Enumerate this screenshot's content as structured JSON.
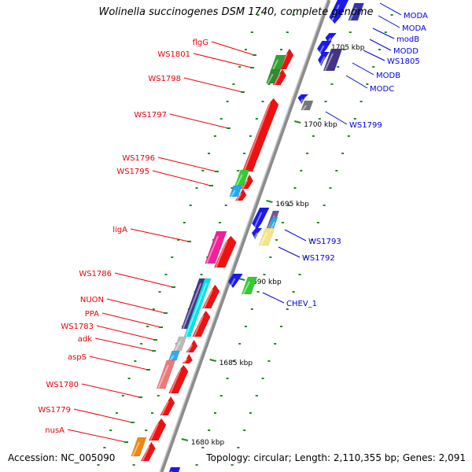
{
  "title": "Wolinella succinogenes DSM 1740, complete genome",
  "accession": "Accession: NC_005090",
  "summary": "Topology: circular; Length: 2,110,355 bp; Genes: 2,091",
  "colors": {
    "forward_label": "#e8000b",
    "reverse_label": "#0000dd",
    "backbone": "#8c8c8c",
    "tick": "#1a8c1a"
  },
  "ticks": [
    {
      "label": "1705 kbp"
    },
    {
      "label": "1700 kbp"
    },
    {
      "label": "1695 kbp"
    },
    {
      "label": "1690 kbp"
    },
    {
      "label": "1685 kbp"
    },
    {
      "label": "1680 kbp"
    }
  ],
  "forward_labels": [
    "flgG",
    "WS1801",
    "WS1798",
    "WS1797",
    "WS1796",
    "WS1795",
    "ligA",
    "WS1786",
    "NUON",
    "PPA",
    "WS1783",
    "adk",
    "aspS",
    "WS1780",
    "WS1779",
    "nusA"
  ],
  "reverse_labels": [
    "MODA",
    "MODA",
    "modB",
    "MODD",
    "WS1805",
    "MODB",
    "MODC",
    "WS1799",
    "WS1793",
    "WS1792",
    "CHEV_1"
  ]
}
